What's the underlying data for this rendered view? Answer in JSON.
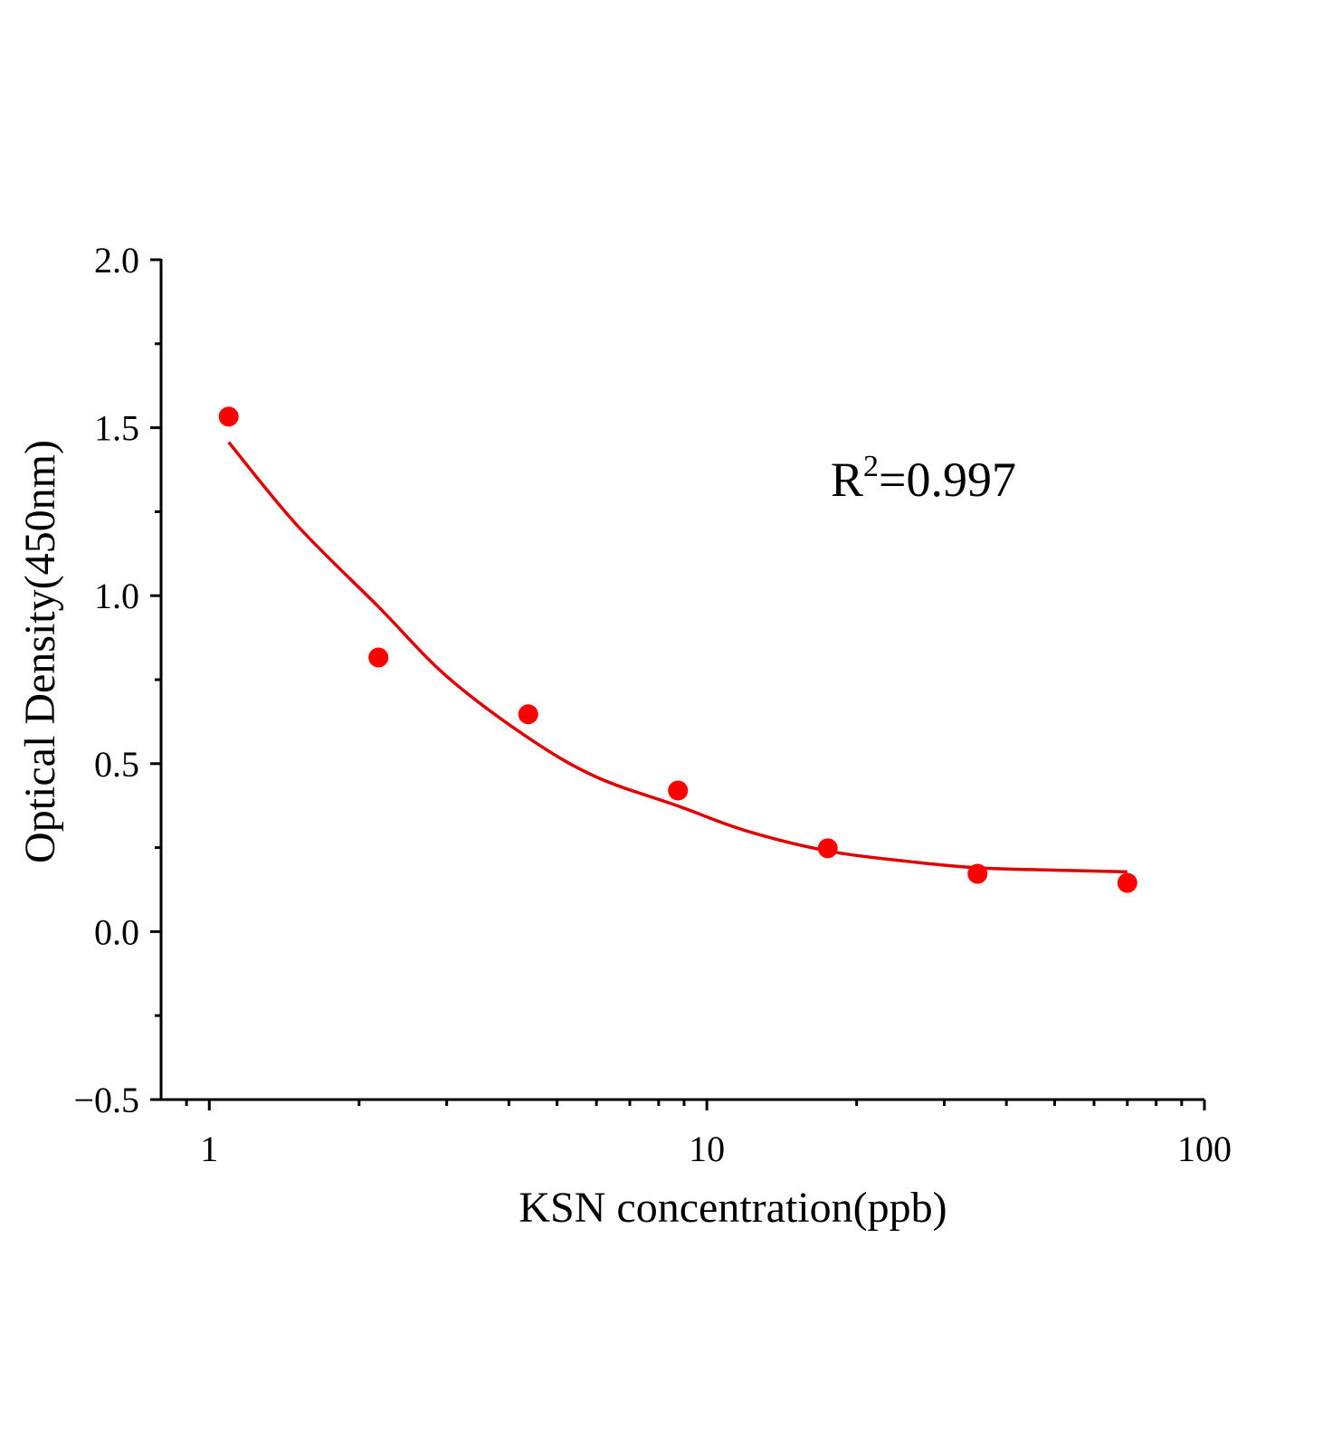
{
  "chart_data": {
    "type": "scatter",
    "title": "",
    "xlabel": "KSN concentration(ppb)",
    "ylabel": "Optical Density(450nm)",
    "x_scale": "log",
    "xlim": [
      0.8,
      100
    ],
    "ylim": [
      -0.5,
      2.0
    ],
    "x_ticks": [
      1,
      10,
      100
    ],
    "x_tick_labels": [
      "1",
      "10",
      "100"
    ],
    "y_ticks": [
      -0.5,
      0.0,
      0.5,
      1.0,
      1.5,
      2.0
    ],
    "y_tick_labels": [
      "−0.5",
      "0.0",
      "0.5",
      "1.0",
      "1.5",
      "2.0"
    ],
    "grid": false,
    "series": [
      {
        "x": [
          1.09375,
          2.1875,
          4.375,
          8.75,
          17.5,
          35,
          70
        ],
        "y": [
          1.533,
          0.816,
          0.647,
          0.42,
          0.248,
          0.172,
          0.145
        ],
        "color": "#ff0000",
        "style": "markers"
      }
    ],
    "fit_curve": {
      "x": [
        1.09375,
        1.5,
        2.1875,
        3.0,
        4.375,
        6.0,
        8.75,
        12.0,
        17.5,
        25,
        35,
        50,
        70
      ],
      "y": [
        1.457,
        1.21,
        0.967,
        0.76,
        0.577,
        0.46,
        0.374,
        0.3,
        0.24,
        0.21,
        0.19,
        0.183,
        0.178
      ],
      "color": "#e00000"
    },
    "annotation": {
      "base": "R",
      "sup": "2",
      "rest": "=0.997"
    }
  }
}
